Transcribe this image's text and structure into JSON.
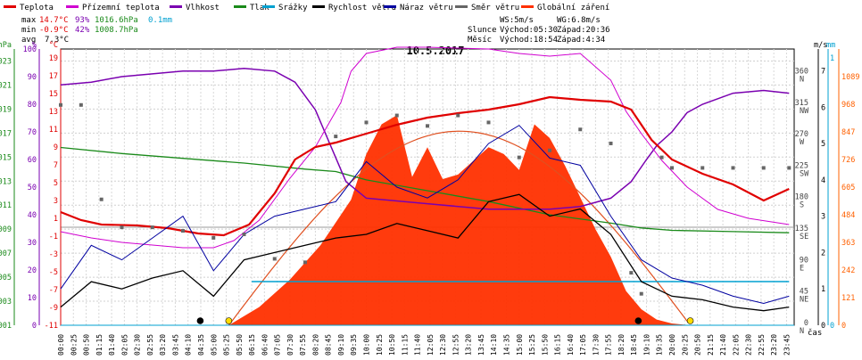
{
  "legend": [
    {
      "label": "Teplota",
      "color": "#e00000"
    },
    {
      "label": "Přízemní teplota",
      "color": "#d000d0"
    },
    {
      "label": "Vlhkost",
      "color": "#7a00b0"
    },
    {
      "label": "Tlak",
      "color": "#1a8a1a"
    },
    {
      "label": "Srážky",
      "color": "#00a0d0"
    },
    {
      "label": "Rychlost větru",
      "color": "#000000"
    },
    {
      "label": "Náraz větru",
      "color": "#0000a0"
    },
    {
      "label": "Směr větru",
      "color": "#666666"
    },
    {
      "label": "Globální záření",
      "color": "#ff3000"
    }
  ],
  "stats": {
    "max_label": "max",
    "max_temp": "14.7°C",
    "max_hum": "93%",
    "max_press": "1016.6hPa",
    "max_rain": "0.1mm",
    "min_label": "min",
    "min_temp": "-0.9°C",
    "min_hum": "42%",
    "min_press": "1008.7hPa",
    "avg_label": "avg",
    "avg_temp": "7.3°C",
    "ws": "WS:5m/s",
    "wg": "WG:6.8m/s",
    "sun_label": "Slunce",
    "sun_rise": "Východ:05:30",
    "sun_set": "Západ:20:36",
    "moon_label": "Měsíc",
    "moon_rise": "Východ:18:54",
    "moon_set": "Západ:4:34"
  },
  "colors": {
    "temperature": "#e00000",
    "ground_temperature": "#d000d0",
    "humidity": "#7a00b0",
    "pressure": "#1a8a1a",
    "rain": "#00a0d0",
    "wind_speed": "#000000",
    "wind_gust": "#0000a0",
    "wind_dir": "#666666",
    "radiation": "#ff3000",
    "radiation_theory": "#e05020"
  },
  "chart_data": {
    "type": "line",
    "title": "10.5.2017",
    "xlabel": "čas",
    "x_ticks": [
      "00:00",
      "00:25",
      "00:50",
      "01:15",
      "01:40",
      "02:05",
      "02:30",
      "02:55",
      "03:20",
      "03:45",
      "04:10",
      "04:35",
      "05:00",
      "05:25",
      "05:50",
      "06:15",
      "06:40",
      "07:05",
      "07:30",
      "07:55",
      "08:20",
      "08:45",
      "09:10",
      "09:35",
      "10:00",
      "10:25",
      "10:50",
      "11:15",
      "11:40",
      "12:05",
      "12:30",
      "12:55",
      "13:20",
      "13:45",
      "14:10",
      "14:35",
      "15:00",
      "15:25",
      "15:50",
      "16:15",
      "16:40",
      "17:05",
      "17:30",
      "17:55",
      "18:20",
      "18:45",
      "19:10",
      "19:35",
      "20:00",
      "20:25",
      "20:50",
      "21:15",
      "21:40",
      "22:05",
      "22:30",
      "22:55",
      "23:20",
      "23:45"
    ],
    "axes": {
      "pressure_hpa": {
        "label": "hPa",
        "ticks": [
          "1023",
          "1021",
          "1019",
          "1017",
          "1015",
          "1013",
          "1011",
          "1009",
          "1007",
          "1005",
          "1003",
          "1001"
        ],
        "range": [
          1001,
          1024
        ]
      },
      "humidity_pct": {
        "label": "%",
        "ticks": [
          "100",
          "90",
          "80",
          "70",
          "60",
          "50",
          "40",
          "30",
          "20",
          "10",
          "0"
        ],
        "range": [
          0,
          100
        ]
      },
      "temperature_c": {
        "label": "°C",
        "ticks": [
          "19",
          "17",
          "15",
          "13",
          "11",
          "9",
          "7",
          "5",
          "3",
          "1",
          "-1",
          "-3",
          "-5",
          "-7",
          "-9",
          "-11"
        ],
        "range": [
          -11,
          20
        ]
      },
      "wind_dir_deg": {
        "ticks": [
          "360",
          "315",
          "270",
          "225",
          "180",
          "135",
          "90",
          "45",
          "0"
        ],
        "compass": [
          "N",
          "NW",
          "W",
          "SW",
          "S",
          "SE",
          "E",
          "NE",
          "N"
        ]
      },
      "wind_ms": {
        "label": "m/s",
        "ticks": [
          "7",
          "6",
          "5",
          "4",
          "3",
          "2",
          "1",
          "0"
        ]
      },
      "rain_mm": {
        "label": "mm",
        "ticks": [
          "1",
          "0"
        ]
      },
      "radiation_wm2": {
        "ticks": [
          "1089",
          "968",
          "847",
          "726",
          "605",
          "484",
          "363",
          "242",
          "121",
          "0"
        ]
      }
    },
    "series": [
      {
        "name": "Teplota",
        "unit": "°C",
        "x": [
          "00:00",
          "00:40",
          "01:20",
          "02:30",
          "03:30",
          "04:30",
          "05:20",
          "06:10",
          "07:00",
          "07:40",
          "08:20",
          "09:00",
          "10:00",
          "11:00",
          "12:00",
          "13:00",
          "14:00",
          "15:00",
          "16:00",
          "17:00",
          "18:00",
          "18:40",
          "19:20",
          "20:00",
          "21:00",
          "22:00",
          "23:00",
          "23:50"
        ],
        "values": [
          1.7,
          0.8,
          0.3,
          0.2,
          -0.1,
          -0.7,
          -0.9,
          0.3,
          3.8,
          7.6,
          9.0,
          9.5,
          10.5,
          11.5,
          12.3,
          12.8,
          13.2,
          13.8,
          14.6,
          14.3,
          14.1,
          13.2,
          9.8,
          7.6,
          6.0,
          4.8,
          3.0,
          4.3
        ]
      },
      {
        "name": "Přízemní teplota",
        "unit": "°C",
        "x": [
          "00:00",
          "01:00",
          "02:00",
          "03:00",
          "04:00",
          "05:00",
          "05:40",
          "06:30",
          "07:30",
          "08:20",
          "08:50",
          "09:10",
          "09:30",
          "10:00",
          "11:00",
          "12:00",
          "13:00",
          "14:00",
          "15:00",
          "16:00",
          "17:00",
          "18:00",
          "18:30",
          "19:00",
          "19:40",
          "20:30",
          "21:30",
          "22:30",
          "23:50"
        ],
        "values": [
          -0.5,
          -1.2,
          -1.7,
          -2.0,
          -2.3,
          -2.3,
          -1.5,
          0.8,
          5.5,
          9.0,
          12.0,
          14.0,
          17.5,
          19.5,
          20.2,
          20.2,
          20.1,
          20.0,
          19.5,
          19.2,
          19.5,
          16.5,
          13.0,
          10.5,
          7.5,
          4.5,
          2.0,
          1.0,
          0.3
        ]
      },
      {
        "name": "Vlhkost",
        "unit": "%",
        "x": [
          "00:00",
          "01:00",
          "02:00",
          "03:00",
          "04:00",
          "05:00",
          "06:00",
          "07:00",
          "07:40",
          "08:20",
          "08:50",
          "09:20",
          "10:00",
          "11:00",
          "12:00",
          "13:00",
          "14:00",
          "15:00",
          "16:00",
          "17:00",
          "18:00",
          "18:40",
          "19:10",
          "19:30",
          "20:00",
          "20:30",
          "21:00",
          "22:00",
          "23:00",
          "23:50"
        ],
        "values": [
          87,
          88,
          90,
          91,
          92,
          92,
          93,
          92,
          88,
          78,
          65,
          52,
          46,
          45,
          44,
          43,
          42,
          42,
          42,
          43,
          46,
          52,
          60,
          65,
          70,
          77,
          80,
          84,
          85,
          84
        ]
      },
      {
        "name": "Tlak",
        "unit": "hPa",
        "x": [
          "00:00",
          "02:00",
          "04:00",
          "06:00",
          "08:00",
          "09:00",
          "10:00",
          "12:00",
          "14:00",
          "16:00",
          "18:00",
          "19:00",
          "20:00",
          "22:00",
          "23:50"
        ],
        "values": [
          1015.8,
          1015.3,
          1014.9,
          1014.5,
          1014.0,
          1013.8,
          1013.1,
          1012.2,
          1011.3,
          1010.2,
          1009.5,
          1009.1,
          1008.9,
          1008.8,
          1008.7
        ]
      },
      {
        "name": "Srážky",
        "unit": "mm",
        "x": [
          "00:00",
          "23:50"
        ],
        "values": [
          0,
          0
        ]
      },
      {
        "name": "Rychlost větru",
        "unit": "m/s",
        "x": [
          "00:00",
          "01:00",
          "02:00",
          "03:00",
          "04:00",
          "05:00",
          "06:00",
          "07:00",
          "08:00",
          "09:00",
          "10:00",
          "11:00",
          "12:00",
          "13:00",
          "14:00",
          "15:00",
          "16:00",
          "17:00",
          "18:00",
          "19:00",
          "20:00",
          "21:00",
          "22:00",
          "23:00",
          "23:50"
        ],
        "values": [
          0.5,
          1.2,
          1.0,
          1.3,
          1.5,
          0.8,
          1.8,
          2.0,
          2.2,
          2.4,
          2.5,
          2.8,
          2.6,
          2.4,
          3.4,
          3.6,
          3.0,
          3.2,
          2.5,
          1.2,
          0.8,
          0.7,
          0.5,
          0.4,
          0.5
        ]
      },
      {
        "name": "Náraz větru",
        "unit": "m/s",
        "x": [
          "00:00",
          "01:00",
          "02:00",
          "03:00",
          "04:00",
          "05:00",
          "06:00",
          "07:00",
          "08:00",
          "09:00",
          "10:00",
          "11:00",
          "12:00",
          "13:00",
          "14:00",
          "15:00",
          "16:00",
          "17:00",
          "18:00",
          "19:00",
          "20:00",
          "21:00",
          "22:00",
          "23:00",
          "23:50"
        ],
        "values": [
          1.0,
          2.2,
          1.8,
          2.4,
          3.0,
          1.5,
          2.5,
          3.0,
          3.2,
          3.4,
          4.5,
          3.8,
          3.5,
          4.0,
          5.0,
          5.5,
          4.6,
          4.4,
          3.0,
          1.8,
          1.3,
          1.1,
          0.8,
          0.6,
          0.8
        ]
      },
      {
        "name": "Směr větru",
        "unit": "°",
        "x": [
          "00:00",
          "00:40",
          "01:20",
          "02:00",
          "03:00",
          "04:00",
          "05:00",
          "06:00",
          "07:00",
          "08:00",
          "09:00",
          "10:00",
          "11:00",
          "12:00",
          "13:00",
          "14:00",
          "15:00",
          "16:00",
          "17:00",
          "18:00",
          "18:40",
          "19:00",
          "19:40",
          "20:00",
          "21:00",
          "22:00",
          "23:00",
          "23:50"
        ],
        "values": [
          315,
          315,
          180,
          140,
          140,
          135,
          125,
          130,
          95,
          90,
          270,
          290,
          300,
          285,
          300,
          290,
          240,
          250,
          280,
          260,
          75,
          45,
          240,
          225,
          225,
          225,
          225,
          225
        ]
      },
      {
        "name": "Globální záření",
        "unit": "W/m²",
        "x": [
          "05:30",
          "06:30",
          "07:30",
          "08:30",
          "09:30",
          "10:00",
          "10:30",
          "11:00",
          "11:30",
          "12:00",
          "12:30",
          "13:00",
          "13:30",
          "14:00",
          "14:30",
          "15:00",
          "15:30",
          "16:00",
          "16:30",
          "17:00",
          "17:30",
          "18:00",
          "18:30",
          "19:00",
          "19:30",
          "20:00",
          "20:36"
        ],
        "values": [
          0,
          80,
          200,
          350,
          550,
          750,
          880,
          920,
          650,
          780,
          640,
          660,
          720,
          780,
          750,
          680,
          880,
          820,
          700,
          560,
          420,
          300,
          150,
          70,
          25,
          8,
          0
        ]
      }
    ]
  }
}
